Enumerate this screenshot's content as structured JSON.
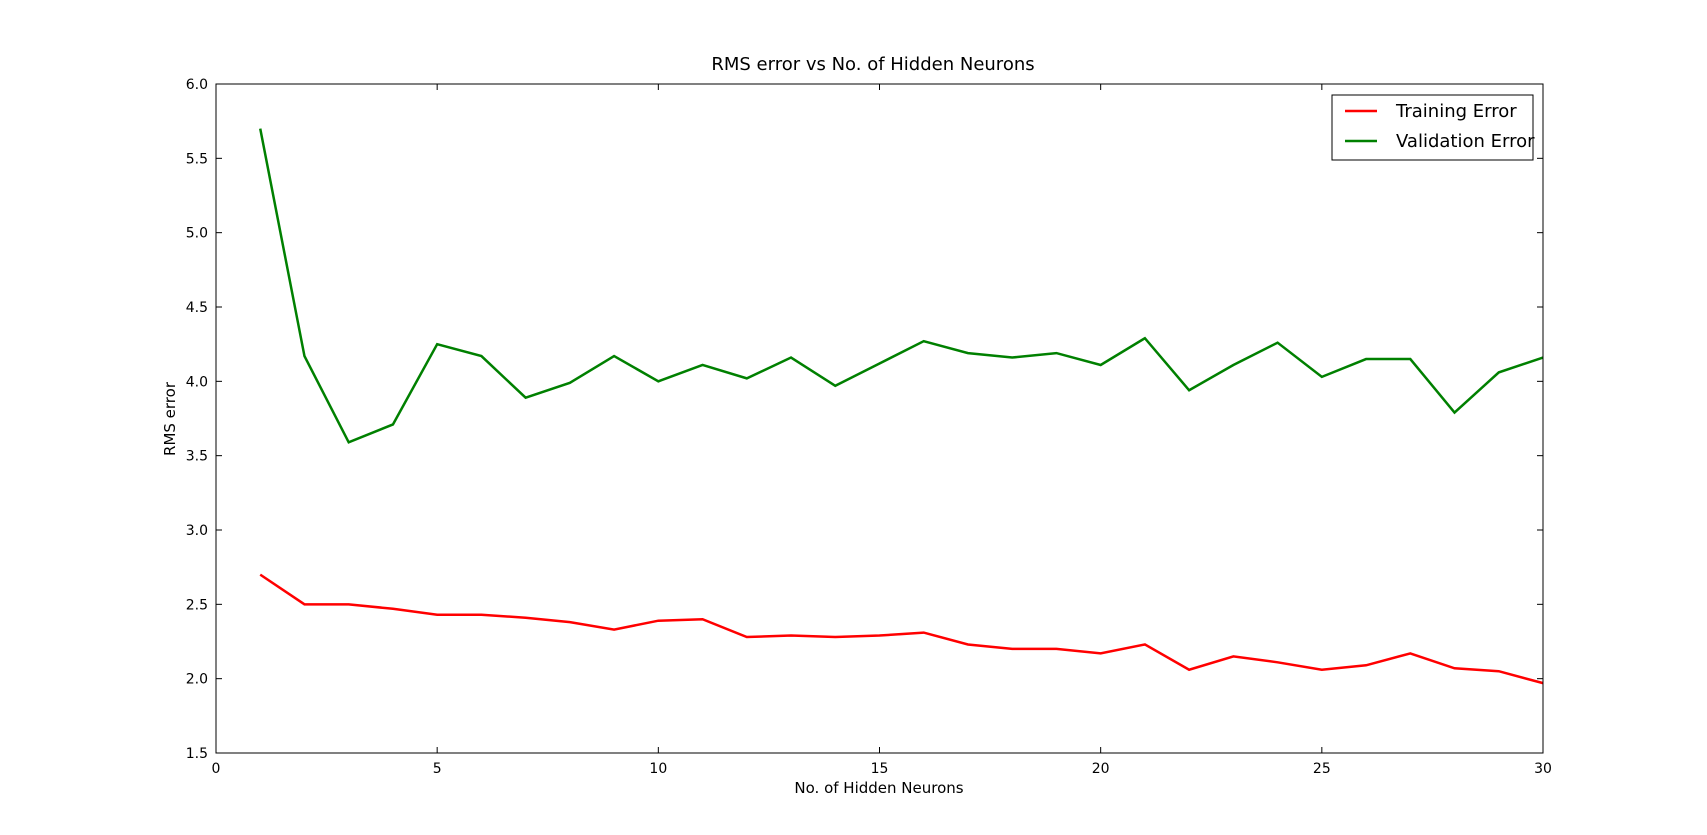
{
  "chart_data": {
    "type": "line",
    "title": "RMS error vs No. of Hidden Neurons",
    "xlabel": "No. of Hidden Neurons",
    "ylabel": "RMS error",
    "xlim": [
      0,
      30
    ],
    "ylim": [
      1.5,
      6.0
    ],
    "xticks": [
      0,
      5,
      10,
      15,
      20,
      25,
      30
    ],
    "yticks": [
      1.5,
      2.0,
      2.5,
      3.0,
      3.5,
      4.0,
      4.5,
      5.0,
      5.5,
      6.0
    ],
    "xtick_labels": [
      "0",
      "5",
      "10",
      "15",
      "20",
      "25",
      "30"
    ],
    "ytick_labels": [
      "1.5",
      "2.0",
      "2.5",
      "3.0",
      "3.5",
      "4.0",
      "4.5",
      "5.0",
      "5.5",
      "6.0"
    ],
    "grid": false,
    "legend_position": "top-right",
    "x": [
      1,
      2,
      3,
      4,
      5,
      6,
      7,
      8,
      9,
      10,
      11,
      12,
      13,
      14,
      15,
      16,
      17,
      18,
      19,
      20,
      21,
      22,
      23,
      24,
      25,
      26,
      27,
      28,
      29,
      30
    ],
    "series": [
      {
        "name": "Training Error",
        "color": "#ff0000",
        "values": [
          2.7,
          2.5,
          2.5,
          2.47,
          2.43,
          2.43,
          2.41,
          2.38,
          2.33,
          2.39,
          2.4,
          2.28,
          2.29,
          2.28,
          2.29,
          2.31,
          2.23,
          2.2,
          2.2,
          2.17,
          2.23,
          2.06,
          2.15,
          2.11,
          2.06,
          2.09,
          2.17,
          2.07,
          2.05,
          1.97
        ]
      },
      {
        "name": "Validation Error",
        "color": "#008000",
        "values": [
          5.7,
          4.17,
          3.59,
          3.71,
          4.25,
          4.17,
          3.89,
          3.99,
          4.17,
          4.0,
          4.11,
          4.02,
          4.16,
          3.97,
          4.12,
          4.27,
          4.19,
          4.16,
          4.19,
          4.11,
          4.29,
          3.94,
          4.11,
          4.26,
          4.03,
          4.15,
          4.15,
          3.79,
          4.06,
          4.16
        ]
      }
    ]
  }
}
